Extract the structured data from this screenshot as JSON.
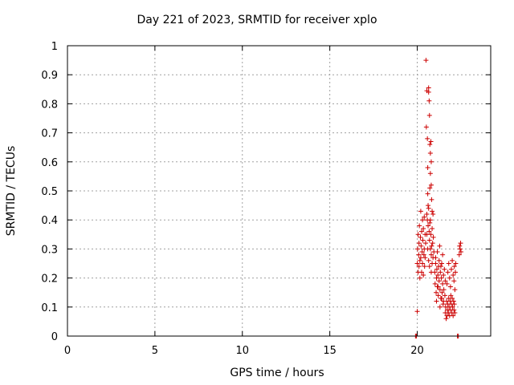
{
  "chart_data": {
    "type": "scatter",
    "title": "Day 221 of 2023, SRMTID for receiver xplo",
    "xlabel": "GPS time / hours",
    "ylabel": "SRMTID / TECUs",
    "xlim": [
      0,
      24.2
    ],
    "ylim": [
      0,
      1
    ],
    "xticks": [
      0,
      5,
      10,
      15,
      20
    ],
    "yticks": [
      0,
      0.1,
      0.2,
      0.3,
      0.4,
      0.5,
      0.6,
      0.7,
      0.8,
      0.9,
      1
    ],
    "grid": true,
    "marker": "plus",
    "color": "#cc0000",
    "series": [
      {
        "name": "SRMTID",
        "points": [
          [
            19.9,
            0.0
          ],
          [
            19.95,
            0.0
          ],
          [
            20.0,
            0.085
          ],
          [
            20.0,
            0.25
          ],
          [
            20.02,
            0.3
          ],
          [
            20.05,
            0.22
          ],
          [
            20.05,
            0.35
          ],
          [
            20.08,
            0.28
          ],
          [
            20.1,
            0.32
          ],
          [
            20.1,
            0.24
          ],
          [
            20.12,
            0.38
          ],
          [
            20.15,
            0.26
          ],
          [
            20.15,
            0.2
          ],
          [
            20.18,
            0.34
          ],
          [
            20.2,
            0.43
          ],
          [
            20.2,
            0.27
          ],
          [
            20.22,
            0.31
          ],
          [
            20.25,
            0.22
          ],
          [
            20.25,
            0.36
          ],
          [
            20.28,
            0.29
          ],
          [
            20.3,
            0.4
          ],
          [
            20.3,
            0.25
          ],
          [
            20.32,
            0.33
          ],
          [
            20.35,
            0.21
          ],
          [
            20.35,
            0.37
          ],
          [
            20.38,
            0.28
          ],
          [
            20.4,
            0.41
          ],
          [
            20.4,
            0.3
          ],
          [
            20.42,
            0.24
          ],
          [
            20.45,
            0.35
          ],
          [
            20.45,
            0.27
          ],
          [
            20.48,
            0.32
          ],
          [
            20.5,
            0.95
          ],
          [
            20.52,
            0.72
          ],
          [
            20.55,
            0.845
          ],
          [
            20.58,
            0.68
          ],
          [
            20.6,
            0.58
          ],
          [
            20.6,
            0.49
          ],
          [
            20.62,
            0.45
          ],
          [
            20.65,
            0.855
          ],
          [
            20.65,
            0.84
          ],
          [
            20.68,
            0.81
          ],
          [
            20.7,
            0.76
          ],
          [
            20.72,
            0.66
          ],
          [
            20.72,
            0.51
          ],
          [
            20.75,
            0.63
          ],
          [
            20.75,
            0.56
          ],
          [
            20.78,
            0.67
          ],
          [
            20.8,
            0.6
          ],
          [
            20.8,
            0.52
          ],
          [
            20.82,
            0.47
          ],
          [
            20.85,
            0.43
          ],
          [
            20.55,
            0.42
          ],
          [
            20.58,
            0.4
          ],
          [
            20.62,
            0.38
          ],
          [
            20.65,
            0.44
          ],
          [
            20.68,
            0.36
          ],
          [
            20.7,
            0.33
          ],
          [
            20.72,
            0.39
          ],
          [
            20.75,
            0.3
          ],
          [
            20.78,
            0.35
          ],
          [
            20.8,
            0.28
          ],
          [
            20.82,
            0.31
          ],
          [
            20.85,
            0.37
          ],
          [
            20.88,
            0.32
          ],
          [
            20.9,
            0.27
          ],
          [
            20.92,
            0.34
          ],
          [
            20.9,
            0.42
          ],
          [
            20.95,
            0.29
          ],
          [
            20.55,
            0.35
          ],
          [
            20.6,
            0.3
          ],
          [
            20.65,
            0.26
          ],
          [
            20.7,
            0.24
          ],
          [
            20.75,
            0.4
          ],
          [
            20.8,
            0.22
          ],
          [
            20.85,
            0.25
          ],
          [
            21.0,
            0.22
          ],
          [
            21.02,
            0.18
          ],
          [
            21.05,
            0.25
          ],
          [
            21.08,
            0.15
          ],
          [
            21.1,
            0.2
          ],
          [
            21.12,
            0.23
          ],
          [
            21.15,
            0.17
          ],
          [
            21.18,
            0.21
          ],
          [
            21.2,
            0.14
          ],
          [
            21.22,
            0.24
          ],
          [
            21.25,
            0.19
          ],
          [
            21.28,
            0.31
          ],
          [
            21.3,
            0.16
          ],
          [
            21.32,
            0.22
          ],
          [
            21.35,
            0.13
          ],
          [
            21.38,
            0.2
          ],
          [
            21.4,
            0.25
          ],
          [
            21.42,
            0.15
          ],
          [
            21.45,
            0.18
          ],
          [
            21.48,
            0.11
          ],
          [
            21.5,
            0.21
          ],
          [
            21.52,
            0.16
          ],
          [
            21.55,
            0.23
          ],
          [
            21.58,
            0.14
          ],
          [
            21.6,
            0.19
          ],
          [
            21.05,
            0.27
          ],
          [
            21.15,
            0.29
          ],
          [
            21.25,
            0.26
          ],
          [
            21.35,
            0.24
          ],
          [
            21.45,
            0.28
          ],
          [
            21.1,
            0.12
          ],
          [
            21.2,
            0.17
          ],
          [
            21.3,
            0.1
          ],
          [
            21.4,
            0.13
          ],
          [
            21.5,
            0.12
          ],
          [
            21.6,
            0.08
          ],
          [
            21.62,
            0.1
          ],
          [
            21.65,
            0.06
          ],
          [
            21.68,
            0.12
          ],
          [
            21.7,
            0.07
          ],
          [
            21.72,
            0.09
          ],
          [
            21.75,
            0.11
          ],
          [
            21.78,
            0.08
          ],
          [
            21.8,
            0.13
          ],
          [
            21.82,
            0.1
          ],
          [
            21.85,
            0.07
          ],
          [
            21.88,
            0.12
          ],
          [
            21.9,
            0.09
          ],
          [
            21.92,
            0.14
          ],
          [
            21.95,
            0.11
          ],
          [
            21.98,
            0.08
          ],
          [
            22.0,
            0.13
          ],
          [
            22.02,
            0.1
          ],
          [
            22.05,
            0.07
          ],
          [
            22.08,
            0.12
          ],
          [
            22.1,
            0.09
          ],
          [
            22.12,
            0.11
          ],
          [
            22.15,
            0.08
          ],
          [
            21.7,
            0.18
          ],
          [
            21.75,
            0.22
          ],
          [
            21.8,
            0.25
          ],
          [
            21.85,
            0.2
          ],
          [
            21.9,
            0.17
          ],
          [
            21.95,
            0.23
          ],
          [
            22.0,
            0.26
          ],
          [
            22.05,
            0.21
          ],
          [
            22.1,
            0.19
          ],
          [
            22.12,
            0.24
          ],
          [
            22.15,
            0.16
          ],
          [
            22.18,
            0.22
          ],
          [
            22.2,
            0.25
          ],
          [
            22.3,
            0.0
          ],
          [
            22.35,
            0.0
          ],
          [
            22.4,
            0.28
          ],
          [
            22.42,
            0.31
          ],
          [
            22.45,
            0.3
          ],
          [
            22.48,
            0.32
          ],
          [
            22.5,
            0.29
          ]
        ]
      }
    ]
  }
}
